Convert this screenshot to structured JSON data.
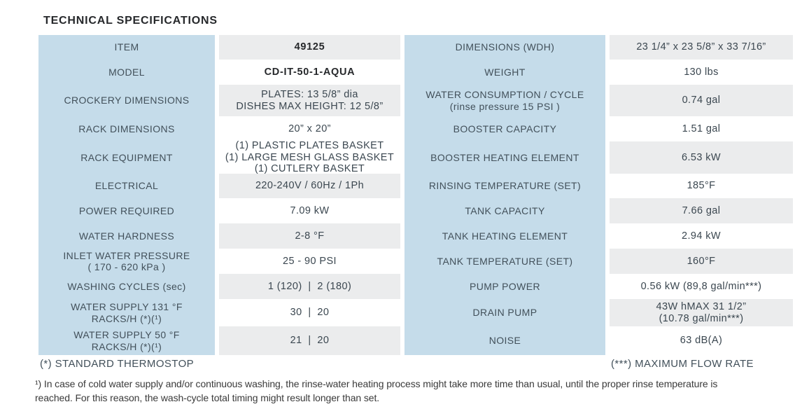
{
  "title": "TECHNICAL SPECIFICATIONS",
  "colors": {
    "label_column_bg": "#c5dcea",
    "value_row_alt_bg": "#ebeced",
    "label_text": "#42505a",
    "value_text": "#3b4750",
    "title_text": "#26282b"
  },
  "left_table": {
    "rows": [
      {
        "label_lines": [
          "ITEM"
        ],
        "value_lines": [
          "49125"
        ],
        "shade": "gray",
        "bold": true
      },
      {
        "label_lines": [
          "MODEL"
        ],
        "value_lines": [
          "CD-IT-50-1-AQUA"
        ],
        "shade": "white",
        "bold": true
      },
      {
        "label_lines": [
          "CROCKERY DIMENSIONS"
        ],
        "value_lines": [
          "PLATES: 13 5/8” dia",
          "DISHES MAX HEIGHT: 12 5/8”"
        ],
        "shade": "gray",
        "bold": false
      },
      {
        "label_lines": [
          "RACK DIMENSIONS"
        ],
        "value_lines": [
          "20” x 20”"
        ],
        "shade": "white",
        "bold": false
      },
      {
        "label_lines": [
          "RACK EQUIPMENT"
        ],
        "value_lines": [
          "(1) PLASTIC PLATES BASKET",
          "(1) LARGE MESH GLASS BASKET",
          "(1) CUTLERY BASKET"
        ],
        "shade": "white",
        "bold": false
      },
      {
        "label_lines": [
          "ELECTRICAL"
        ],
        "value_lines": [
          "220-240V / 60Hz / 1Ph"
        ],
        "shade": "gray",
        "bold": false
      },
      {
        "label_lines": [
          "POWER REQUIRED"
        ],
        "value_lines": [
          "7.09 kW"
        ],
        "shade": "white",
        "bold": false
      },
      {
        "label_lines": [
          "WATER HARDNESS"
        ],
        "value_lines": [
          "2-8 °F"
        ],
        "shade": "gray",
        "bold": false
      },
      {
        "label_lines": [
          "INLET WATER PRESSURE",
          "( 170 - 620 kPa )"
        ],
        "value_lines": [
          "25 - 90 PSI"
        ],
        "shade": "white",
        "bold": false
      },
      {
        "label_lines": [
          "WASHING CYCLES (sec)"
        ],
        "value_lines": [
          "1 (120)  |  2 (180)"
        ],
        "shade": "gray",
        "bold": false
      },
      {
        "label_lines": [
          "WATER SUPPLY 131 °F",
          "RACKS/H (*)(¹)"
        ],
        "value_lines": [
          "30  |  20"
        ],
        "shade": "white",
        "bold": false
      },
      {
        "label_lines": [
          "WATER SUPPLY 50 °F",
          "RACKS/H (*)(¹)"
        ],
        "value_lines": [
          "21  |  20"
        ],
        "shade": "gray",
        "bold": false
      }
    ]
  },
  "right_table": {
    "rows": [
      {
        "label_lines": [
          "DIMENSIONS (WDH)"
        ],
        "value_lines": [
          "23 1/4” x 23 5/8” x 33 7/16”"
        ],
        "shade": "gray",
        "bold": false
      },
      {
        "label_lines": [
          "WEIGHT"
        ],
        "value_lines": [
          "130 lbs"
        ],
        "shade": "white",
        "bold": false
      },
      {
        "label_lines": [
          "WATER CONSUMPTION / CYCLE",
          "(rinse pressure 15 PSI )"
        ],
        "value_lines": [
          "0.74 gal"
        ],
        "shade": "gray",
        "bold": false
      },
      {
        "label_lines": [
          "BOOSTER CAPACITY"
        ],
        "value_lines": [
          "1.51 gal"
        ],
        "shade": "white",
        "bold": false
      },
      {
        "label_lines": [
          "BOOSTER HEATING ELEMENT"
        ],
        "value_lines": [
          "6.53 kW"
        ],
        "shade": "gray",
        "bold": false
      },
      {
        "label_lines": [
          "RINSING TEMPERATURE (SET)"
        ],
        "value_lines": [
          "185°F"
        ],
        "shade": "white",
        "bold": false
      },
      {
        "label_lines": [
          "TANK CAPACITY"
        ],
        "value_lines": [
          "7.66 gal"
        ],
        "shade": "gray",
        "bold": false
      },
      {
        "label_lines": [
          "TANK HEATING ELEMENT"
        ],
        "value_lines": [
          "2.94 kW"
        ],
        "shade": "white",
        "bold": false
      },
      {
        "label_lines": [
          "TANK TEMPERATURE (SET)"
        ],
        "value_lines": [
          "160°F"
        ],
        "shade": "gray",
        "bold": false
      },
      {
        "label_lines": [
          "PUMP POWER"
        ],
        "value_lines": [
          "0.56 kW (89,8 gal/min***)"
        ],
        "shade": "white",
        "bold": false
      },
      {
        "label_lines": [
          "DRAIN PUMP"
        ],
        "value_lines": [
          "43W hMAX 31 1/2”",
          "(10.78 gal/min***)"
        ],
        "shade": "gray",
        "bold": false
      },
      {
        "label_lines": [
          "NOISE"
        ],
        "value_lines": [
          "63 dB(A)"
        ],
        "shade": "white",
        "bold": false
      }
    ]
  },
  "footer": {
    "left_note": "(*) STANDARD THERMOSTOP",
    "right_note": "(***) MAXIMUM FLOW RATE",
    "note_lines": [
      "¹) In case of cold water supply and/or continuous washing, the rinse-water heating process might take more time than usual, until the proper rinse temperature is",
      "reached. For this reason, the wash-cycle total timing might result longer than set."
    ]
  }
}
